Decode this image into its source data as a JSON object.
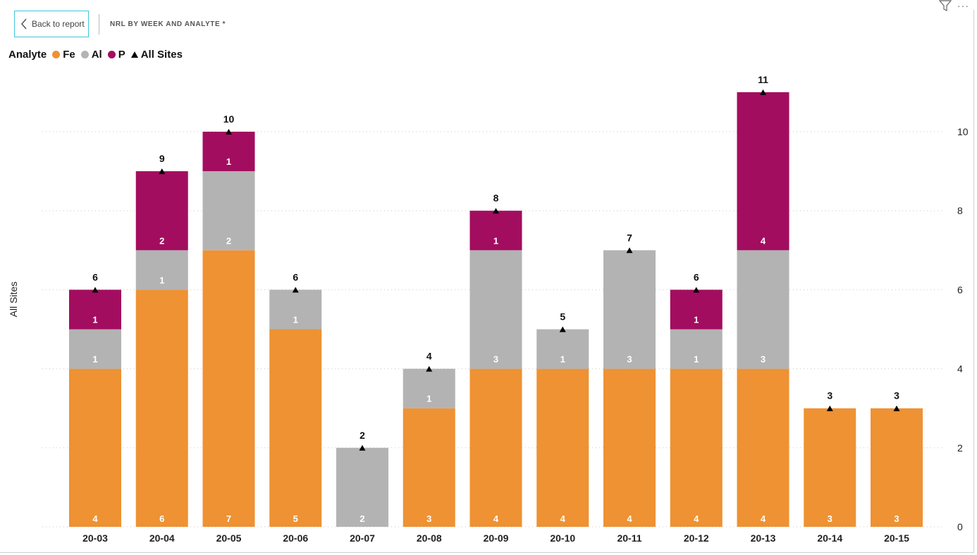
{
  "header": {
    "back_label": "Back to report",
    "title": "NRL BY WEEK AND ANALYTE *",
    "filter_icon": "filter-icon",
    "more_icon": "more-options-icon",
    "more_glyph": "···"
  },
  "legend": {
    "title": "Analyte",
    "items": [
      {
        "label": "Fe",
        "color": "#EE9233"
      },
      {
        "label": "Al",
        "color": "#B3B3B3"
      },
      {
        "label": "P",
        "color": "#A30D5F"
      },
      {
        "label": "All Sites",
        "color": "#000000",
        "marker": "triangle"
      }
    ]
  },
  "chart_data": {
    "type": "bar",
    "stacked": true,
    "categories": [
      "20-03",
      "20-04",
      "20-05",
      "20-06",
      "20-07",
      "20-08",
      "20-09",
      "20-10",
      "20-11",
      "20-12",
      "20-13",
      "20-14",
      "20-15"
    ],
    "series": [
      {
        "name": "Fe",
        "color": "#EE9233",
        "values": [
          4,
          6,
          7,
          5,
          0,
          3,
          4,
          4,
          4,
          4,
          4,
          3,
          3
        ]
      },
      {
        "name": "Al",
        "color": "#B3B3B3",
        "values": [
          1,
          1,
          2,
          1,
          2,
          1,
          3,
          1,
          3,
          1,
          3,
          0,
          0
        ]
      },
      {
        "name": "P",
        "color": "#A30D5F",
        "values": [
          1,
          2,
          1,
          0,
          0,
          0,
          1,
          0,
          0,
          1,
          4,
          0,
          0
        ]
      }
    ],
    "line_series": {
      "name": "All Sites",
      "marker": "triangle",
      "values": [
        6,
        9,
        10,
        6,
        2,
        4,
        8,
        5,
        7,
        6,
        11,
        3,
        3
      ]
    },
    "ylabel": "All Sites",
    "ylim": [
      0,
      11
    ],
    "yticks": [
      0,
      2,
      4,
      6,
      8,
      10
    ],
    "y_axis_position": "right",
    "grid": true,
    "legend_position": "top-left"
  }
}
